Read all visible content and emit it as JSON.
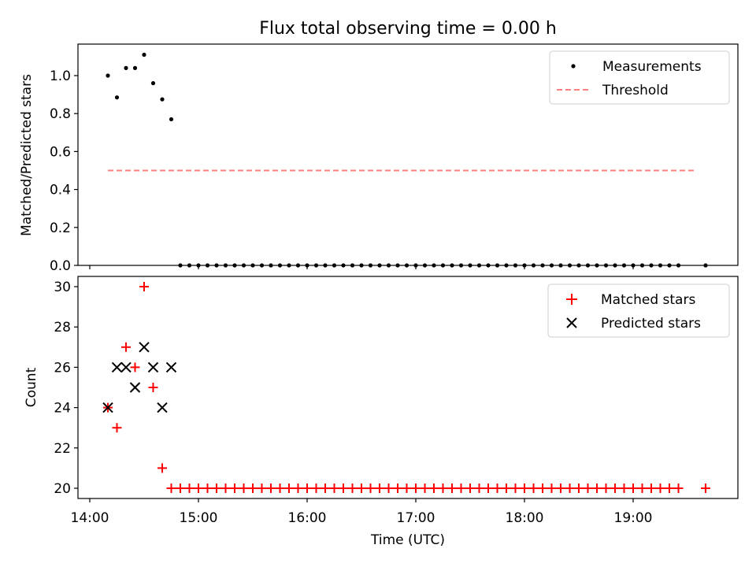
{
  "figure": {
    "title": "Flux total observing time = 0.00 h"
  },
  "chart_data": [
    {
      "type": "scatter",
      "title": "Flux total observing time = 0.00 h",
      "xlabel": "",
      "ylabel": "Matched/Predicted stars",
      "xlim": [
        "14:00",
        "20:00"
      ],
      "ylim": [
        0,
        1.15
      ],
      "yticks": [
        "0.0",
        "0.2",
        "0.4",
        "0.6",
        "0.8",
        "1.0"
      ],
      "grid": false,
      "legend": {
        "placement": "top-right",
        "entries": [
          "Measurements",
          "Threshold"
        ]
      },
      "series": [
        {
          "name": "Measurements",
          "marker": "dot",
          "color": "#000000",
          "x": [
            "14:10",
            "14:15",
            "14:20",
            "14:25",
            "14:30",
            "14:35",
            "14:40",
            "14:45",
            "14:50",
            "14:55",
            "15:00",
            "15:05",
            "15:10",
            "15:15",
            "15:20",
            "15:25",
            "15:30",
            "15:35",
            "15:40",
            "15:45",
            "15:50",
            "15:55",
            "16:00",
            "16:05",
            "16:10",
            "16:15",
            "16:20",
            "16:25",
            "16:30",
            "16:35",
            "16:40",
            "16:45",
            "16:50",
            "16:55",
            "17:00",
            "17:05",
            "17:10",
            "17:15",
            "17:20",
            "17:25",
            "17:30",
            "17:35",
            "17:40",
            "17:45",
            "17:50",
            "17:55",
            "18:00",
            "18:05",
            "18:10",
            "18:15",
            "18:20",
            "18:25",
            "18:30",
            "18:35",
            "18:40",
            "18:45",
            "18:50",
            "18:55",
            "19:00",
            "19:05",
            "19:10",
            "19:15",
            "19:20",
            "19:25",
            "19:40"
          ],
          "y": [
            1.0,
            0.885,
            1.04,
            1.04,
            1.11,
            0.96,
            0.875,
            0.77,
            0,
            0,
            0,
            0,
            0,
            0,
            0,
            0,
            0,
            0,
            0,
            0,
            0,
            0,
            0,
            0,
            0,
            0,
            0,
            0,
            0,
            0,
            0,
            0,
            0,
            0,
            0,
            0,
            0,
            0,
            0,
            0,
            0,
            0,
            0,
            0,
            0,
            0,
            0,
            0,
            0,
            0,
            0,
            0,
            0,
            0,
            0,
            0,
            0,
            0,
            0,
            0,
            0,
            0,
            0,
            0,
            0
          ]
        },
        {
          "name": "Threshold",
          "type": "line",
          "style": "dashed",
          "color": "#ff7f7f",
          "x": [
            "14:10",
            "19:35"
          ],
          "y": [
            0.5,
            0.5
          ]
        }
      ]
    },
    {
      "type": "scatter",
      "title": "",
      "xlabel": "Time (UTC)",
      "ylabel": "Count",
      "xlim": [
        "14:00",
        "20:00"
      ],
      "ylim": [
        19.5,
        30.5
      ],
      "xticks": [
        "14:00",
        "15:00",
        "16:00",
        "17:00",
        "18:00",
        "19:00"
      ],
      "yticks": [
        "20",
        "22",
        "24",
        "26",
        "28",
        "30"
      ],
      "grid": false,
      "legend": {
        "placement": "top-right",
        "entries": [
          "Matched stars",
          "Predicted stars"
        ]
      },
      "series": [
        {
          "name": "Matched stars",
          "marker": "plus",
          "color": "#ff0000",
          "x": [
            "14:10",
            "14:15",
            "14:20",
            "14:25",
            "14:30",
            "14:35",
            "14:40",
            "14:45",
            "14:50",
            "14:55",
            "15:00",
            "15:05",
            "15:10",
            "15:15",
            "15:20",
            "15:25",
            "15:30",
            "15:35",
            "15:40",
            "15:45",
            "15:50",
            "15:55",
            "16:00",
            "16:05",
            "16:10",
            "16:15",
            "16:20",
            "16:25",
            "16:30",
            "16:35",
            "16:40",
            "16:45",
            "16:50",
            "16:55",
            "17:00",
            "17:05",
            "17:10",
            "17:15",
            "17:20",
            "17:25",
            "17:30",
            "17:35",
            "17:40",
            "17:45",
            "17:50",
            "17:55",
            "18:00",
            "18:05",
            "18:10",
            "18:15",
            "18:20",
            "18:25",
            "18:30",
            "18:35",
            "18:40",
            "18:45",
            "18:50",
            "18:55",
            "19:00",
            "19:05",
            "19:10",
            "19:15",
            "19:20",
            "19:25",
            "19:40"
          ],
          "y": [
            24,
            23,
            27,
            26,
            30,
            25,
            21,
            20,
            20,
            20,
            20,
            20,
            20,
            20,
            20,
            20,
            20,
            20,
            20,
            20,
            20,
            20,
            20,
            20,
            20,
            20,
            20,
            20,
            20,
            20,
            20,
            20,
            20,
            20,
            20,
            20,
            20,
            20,
            20,
            20,
            20,
            20,
            20,
            20,
            20,
            20,
            20,
            20,
            20,
            20,
            20,
            20,
            20,
            20,
            20,
            20,
            20,
            20,
            20,
            20,
            20,
            20,
            20,
            20,
            20
          ]
        },
        {
          "name": "Predicted stars",
          "marker": "x",
          "color": "#000000",
          "x": [
            "14:10",
            "14:15",
            "14:20",
            "14:25",
            "14:30",
            "14:35",
            "14:40",
            "14:45"
          ],
          "y": [
            24,
            26,
            26,
            25,
            27,
            26,
            24,
            26
          ]
        }
      ]
    }
  ]
}
